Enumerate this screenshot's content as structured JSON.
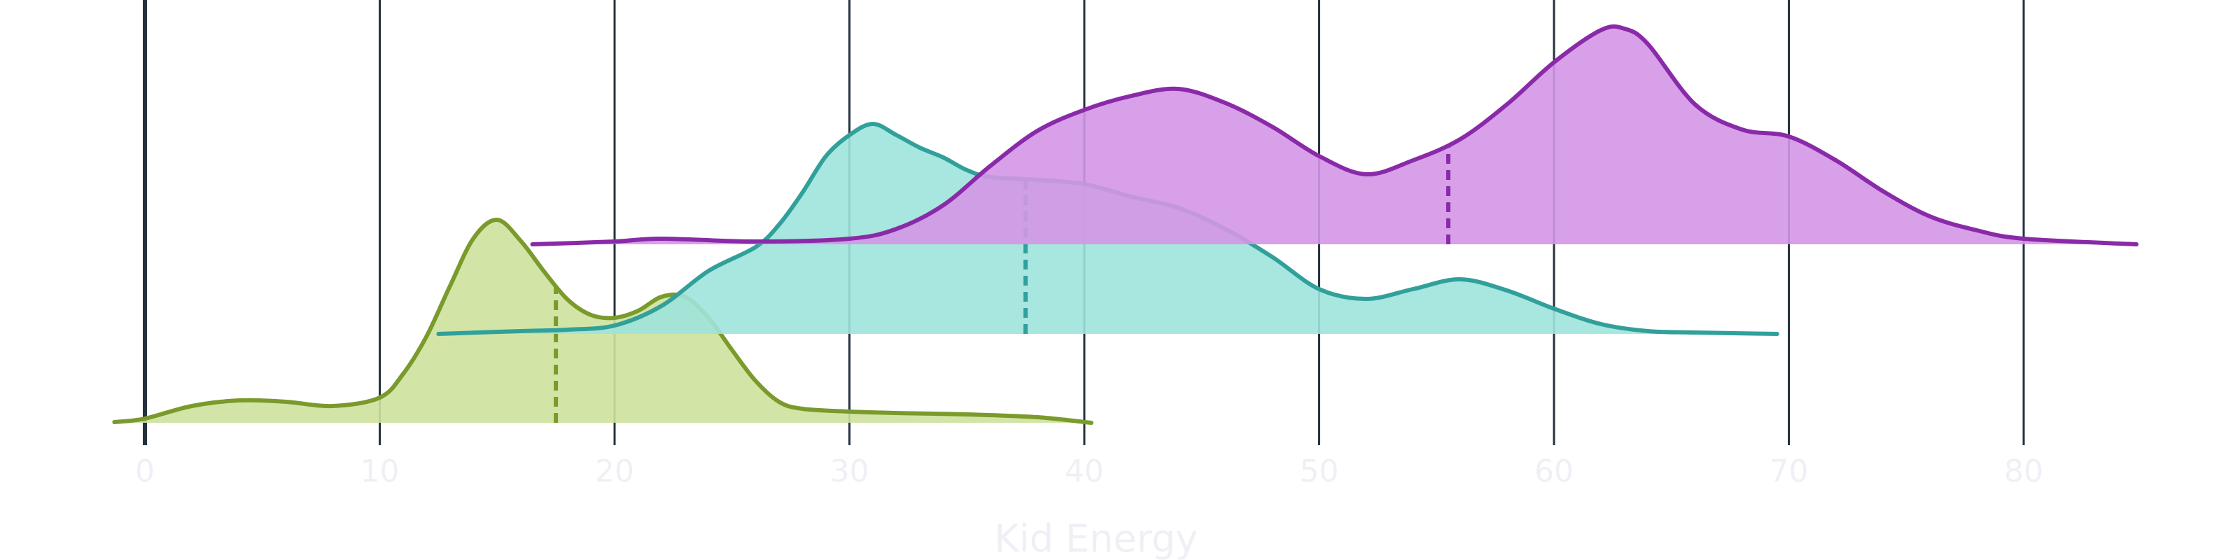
{
  "chart_data": {
    "type": "ridgeline",
    "xlabel": "Kid Energy",
    "ylabel": "",
    "xlim": [
      -1.5,
      86
    ],
    "x_ticks": [
      0,
      10,
      20,
      30,
      40,
      50,
      60,
      70,
      80
    ],
    "x_tick_labels": [
      "0",
      "10",
      "20",
      "30",
      "40",
      "50",
      "60",
      "70",
      "80"
    ],
    "grid": "vertical lines at x ticks",
    "legend": "none",
    "colors": {
      "gridline": "#243240",
      "zero_line": "#243240",
      "tick_text": "#eef0f6",
      "axis_title": "#eef0f6",
      "background": "#ffffff"
    },
    "series": [
      {
        "line_color": "#7a9a2c",
        "fill_color": "#cde29d",
        "median": 17.5,
        "x": [
          -1.3,
          0,
          2,
          4,
          6,
          8,
          10,
          11,
          12,
          13,
          14,
          15,
          16,
          17,
          18,
          19,
          20,
          21,
          22,
          23,
          24,
          25,
          26,
          27,
          28,
          30,
          32,
          35,
          38,
          40.3
        ],
        "density": [
          0.005,
          0.03,
          0.12,
          0.16,
          0.15,
          0.12,
          0.18,
          0.35,
          0.62,
          0.98,
          1.32,
          1.45,
          1.3,
          1.08,
          0.88,
          0.77,
          0.75,
          0.8,
          0.9,
          0.9,
          0.75,
          0.52,
          0.3,
          0.15,
          0.1,
          0.08,
          0.07,
          0.06,
          0.04,
          0.0
        ]
      },
      {
        "line_color": "#32a09a",
        "fill_color": "#9fe3dd",
        "median": 37.5,
        "x": [
          12.5,
          16,
          18,
          20,
          22,
          24,
          26,
          27,
          28,
          29,
          30,
          31,
          32,
          33,
          34,
          35,
          36,
          38,
          40,
          42,
          44,
          46,
          48,
          50,
          52,
          54,
          56,
          58,
          60,
          62,
          64,
          66,
          69.5
        ],
        "density": [
          0.0,
          0.02,
          0.03,
          0.06,
          0.2,
          0.45,
          0.62,
          0.78,
          1.01,
          1.27,
          1.42,
          1.5,
          1.42,
          1.33,
          1.26,
          1.17,
          1.12,
          1.1,
          1.07,
          0.98,
          0.9,
          0.75,
          0.55,
          0.32,
          0.25,
          0.32,
          0.39,
          0.31,
          0.18,
          0.07,
          0.02,
          0.01,
          0.0
        ]
      },
      {
        "line_color": "#8a2aa8",
        "fill_color": "#d396e6",
        "median": 55.5,
        "x": [
          16.5,
          20,
          22,
          26,
          30,
          32,
          34,
          36,
          38,
          40,
          42,
          44,
          46,
          48,
          50,
          52,
          54,
          56,
          58,
          60,
          62,
          63,
          64,
          66,
          68,
          70,
          72,
          74,
          76,
          78,
          80,
          84.8
        ],
        "density": [
          0.0,
          0.02,
          0.04,
          0.02,
          0.04,
          0.11,
          0.28,
          0.56,
          0.81,
          0.96,
          1.06,
          1.11,
          1.01,
          0.84,
          0.63,
          0.5,
          0.6,
          0.75,
          1.0,
          1.3,
          1.53,
          1.54,
          1.43,
          1.0,
          0.82,
          0.77,
          0.6,
          0.38,
          0.2,
          0.1,
          0.04,
          0.0
        ]
      }
    ]
  }
}
